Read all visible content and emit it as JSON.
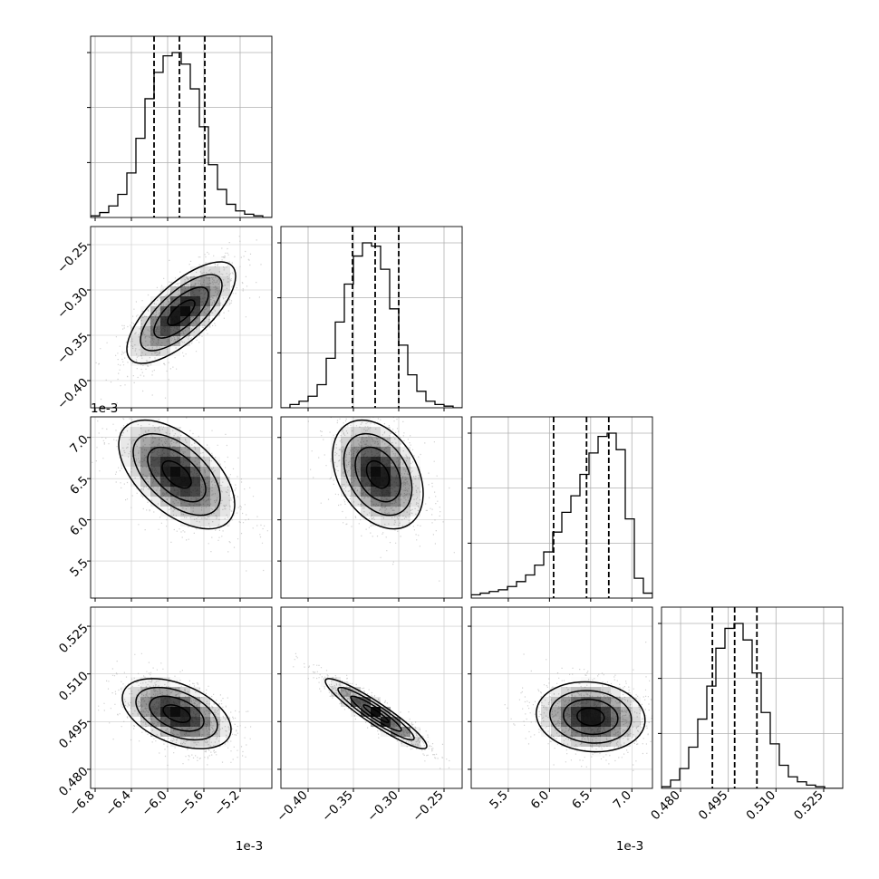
{
  "chart_data": {
    "type": "corner",
    "grid": true,
    "offset_text": "1e-3",
    "parameters": [
      {
        "range": [
          -6.85,
          -4.85
        ],
        "ticks": [
          -6.8,
          -6.4,
          -6.0,
          -5.6,
          -5.2
        ],
        "tick_labels": [
          "−6.8",
          "−6.4",
          "−6.0",
          "−5.6",
          "−5.2"
        ],
        "offset": "1e-3",
        "quantiles": [
          -6.15,
          -5.87,
          -5.59
        ]
      },
      {
        "range": [
          -0.43,
          -0.23
        ],
        "ticks": [
          -0.4,
          -0.35,
          -0.3,
          -0.25
        ],
        "tick_labels": [
          "−0.40",
          "−0.35",
          "−0.30",
          "−0.25"
        ],
        "offset": "",
        "quantiles": [
          -0.351,
          -0.326,
          -0.3
        ]
      },
      {
        "range": [
          5.05,
          7.25
        ],
        "ticks": [
          5.5,
          6.0,
          6.5,
          7.0
        ],
        "tick_labels": [
          "5.5",
          "6.0",
          "6.5",
          "7.0"
        ],
        "offset": "1e-3",
        "quantiles": [
          6.05,
          6.45,
          6.72
        ]
      },
      {
        "range": [
          0.474,
          0.531
        ],
        "ticks": [
          0.48,
          0.495,
          0.51,
          0.525
        ],
        "tick_labels": [
          "0.480",
          "0.495",
          "0.510",
          "0.525"
        ],
        "offset": "",
        "quantiles": [
          0.49,
          0.497,
          0.504
        ]
      }
    ],
    "histograms": [
      [
        0.01,
        0.03,
        0.07,
        0.14,
        0.27,
        0.48,
        0.72,
        0.88,
        0.98,
        1.0,
        0.93,
        0.78,
        0.55,
        0.32,
        0.17,
        0.08,
        0.04,
        0.02,
        0.01,
        0.0
      ],
      [
        0.0,
        0.02,
        0.04,
        0.07,
        0.14,
        0.3,
        0.52,
        0.75,
        0.92,
        1.0,
        0.98,
        0.84,
        0.6,
        0.38,
        0.2,
        0.1,
        0.04,
        0.02,
        0.01,
        0.0
      ],
      [
        0.02,
        0.03,
        0.04,
        0.05,
        0.07,
        0.1,
        0.14,
        0.2,
        0.28,
        0.4,
        0.52,
        0.62,
        0.75,
        0.88,
        0.98,
        1.0,
        0.9,
        0.48,
        0.12,
        0.03
      ],
      [
        0.01,
        0.05,
        0.12,
        0.25,
        0.42,
        0.62,
        0.85,
        0.97,
        1.0,
        0.9,
        0.7,
        0.46,
        0.27,
        0.14,
        0.07,
        0.04,
        0.02,
        0.01,
        0.0,
        0.0
      ]
    ],
    "pairs": [
      {
        "row": 1,
        "col": 0,
        "center": [
          -5.85,
          -0.325
        ],
        "sigma": [
          0.3,
          0.028
        ],
        "rho": 0.72
      },
      {
        "row": 2,
        "col": 0,
        "center": [
          -5.9,
          6.55
        ],
        "sigma": [
          0.32,
          0.33
        ],
        "rho": -0.55
      },
      {
        "row": 2,
        "col": 1,
        "center": [
          -0.323,
          6.55
        ],
        "sigma": [
          0.025,
          0.33
        ],
        "rho": -0.35
      },
      {
        "row": 3,
        "col": 0,
        "center": [
          -5.9,
          0.4975
        ],
        "sigma": [
          0.3,
          0.0055
        ],
        "rho": -0.45
      },
      {
        "row": 3,
        "col": 1,
        "center": [
          -0.325,
          0.4975
        ],
        "sigma": [
          0.028,
          0.0055
        ],
        "rho": -0.93
      },
      {
        "row": 3,
        "col": 2,
        "center": [
          6.5,
          0.4965
        ],
        "sigma": [
          0.33,
          0.0055
        ],
        "rho": -0.1
      }
    ]
  }
}
